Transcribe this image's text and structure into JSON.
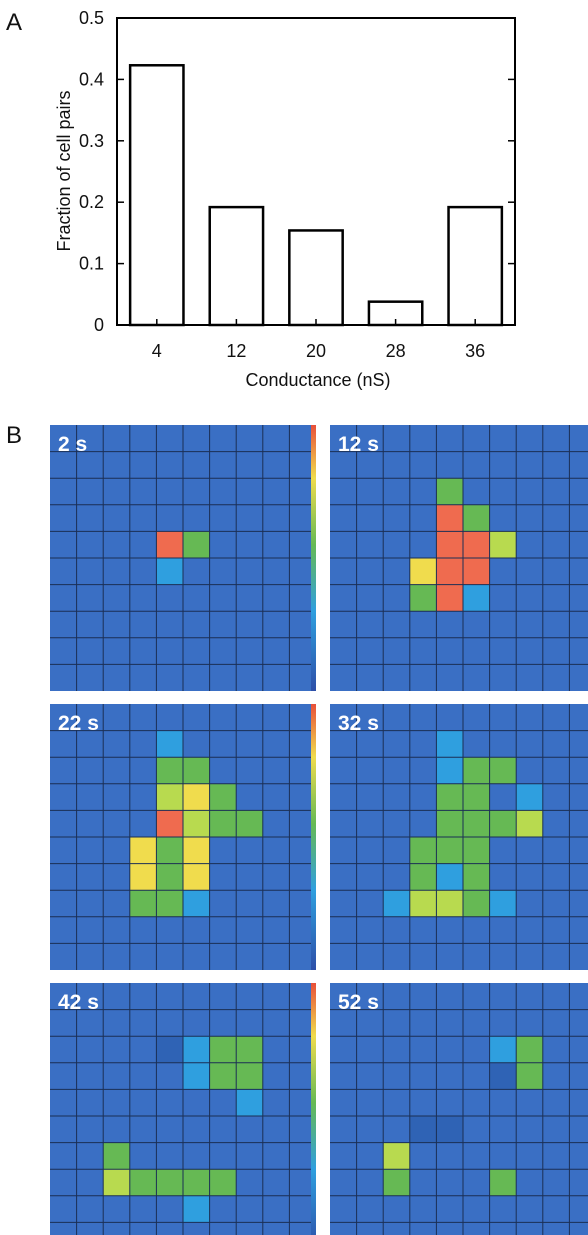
{
  "panels": {
    "a_letter": "A",
    "b_letter": "B"
  },
  "chart_data": {
    "type": "bar",
    "categories": [
      "4",
      "12",
      "20",
      "28",
      "36"
    ],
    "values": [
      0.423,
      0.192,
      0.154,
      0.038,
      0.192
    ],
    "xlabel": "Conductance (nS)",
    "ylabel": "Fraction of cell pairs",
    "ylim": [
      0,
      0.5
    ],
    "yticks": [
      "0",
      "0.1",
      "0.2",
      "0.3",
      "0.4",
      "0.5"
    ],
    "grid": false,
    "bar_fill": "#ffffff",
    "bar_stroke": "#000000"
  },
  "heatmaps": {
    "background_color": "#3a6fc4",
    "grid_line_color": "#1b2f55",
    "colors": {
      "r": "#ef6b4f",
      "y": "#f0dc4d",
      "lg": "#b8da4f",
      "g": "#66b954",
      "c": "#2f9fdf",
      "d": "#2f63b5"
    },
    "frames": [
      {
        "label": "2 s",
        "cells": [
          [
            "-",
            "-",
            "-",
            "-",
            "-",
            "-",
            "-",
            "-",
            "-",
            "-"
          ],
          [
            "-",
            "-",
            "-",
            "-",
            "-",
            "-",
            "-",
            "-",
            "-",
            "-"
          ],
          [
            "-",
            "-",
            "-",
            "-",
            "-",
            "-",
            "-",
            "-",
            "-",
            "-"
          ],
          [
            "-",
            "-",
            "-",
            "-",
            "-",
            "-",
            "-",
            "-",
            "-",
            "-"
          ],
          [
            "-",
            "-",
            "-",
            "-",
            "r",
            "g",
            "-",
            "-",
            "-",
            "-"
          ],
          [
            "-",
            "-",
            "-",
            "-",
            "c",
            "-",
            "-",
            "-",
            "-",
            "-"
          ],
          [
            "-",
            "-",
            "-",
            "-",
            "-",
            "-",
            "-",
            "-",
            "-",
            "-"
          ],
          [
            "-",
            "-",
            "-",
            "-",
            "-",
            "-",
            "-",
            "-",
            "-",
            "-"
          ],
          [
            "-",
            "-",
            "-",
            "-",
            "-",
            "-",
            "-",
            "-",
            "-",
            "-"
          ],
          [
            "-",
            "-",
            "-",
            "-",
            "-",
            "-",
            "-",
            "-",
            "-",
            "-"
          ]
        ]
      },
      {
        "label": "12 s",
        "cells": [
          [
            "-",
            "-",
            "-",
            "-",
            "-",
            "-",
            "-",
            "-",
            "-",
            "-"
          ],
          [
            "-",
            "-",
            "-",
            "-",
            "-",
            "-",
            "-",
            "-",
            "-",
            "-"
          ],
          [
            "-",
            "-",
            "-",
            "-",
            "g",
            "-",
            "-",
            "-",
            "-",
            "-"
          ],
          [
            "-",
            "-",
            "-",
            "-",
            "r",
            "g",
            "-",
            "-",
            "-",
            "-"
          ],
          [
            "-",
            "-",
            "-",
            "-",
            "r",
            "r",
            "lg",
            "-",
            "-",
            "-"
          ],
          [
            "-",
            "-",
            "-",
            "y",
            "r",
            "r",
            "-",
            "-",
            "-",
            "-"
          ],
          [
            "-",
            "-",
            "-",
            "g",
            "r",
            "c",
            "-",
            "-",
            "-",
            "-"
          ],
          [
            "-",
            "-",
            "-",
            "-",
            "-",
            "-",
            "-",
            "-",
            "-",
            "-"
          ],
          [
            "-",
            "-",
            "-",
            "-",
            "-",
            "-",
            "-",
            "-",
            "-",
            "-"
          ],
          [
            "-",
            "-",
            "-",
            "-",
            "-",
            "-",
            "-",
            "-",
            "-",
            "-"
          ]
        ]
      },
      {
        "label": "22 s",
        "cells": [
          [
            "-",
            "-",
            "-",
            "-",
            "-",
            "-",
            "-",
            "-",
            "-",
            "-"
          ],
          [
            "-",
            "-",
            "-",
            "-",
            "c",
            "-",
            "-",
            "-",
            "-",
            "-"
          ],
          [
            "-",
            "-",
            "-",
            "-",
            "g",
            "g",
            "-",
            "-",
            "-",
            "-"
          ],
          [
            "-",
            "-",
            "-",
            "-",
            "lg",
            "y",
            "g",
            "-",
            "-",
            "-"
          ],
          [
            "-",
            "-",
            "-",
            "-",
            "r",
            "lg",
            "g",
            "g",
            "-",
            "-"
          ],
          [
            "-",
            "-",
            "-",
            "y",
            "g",
            "y",
            "-",
            "-",
            "-",
            "-"
          ],
          [
            "-",
            "-",
            "-",
            "y",
            "g",
            "y",
            "-",
            "-",
            "-",
            "-"
          ],
          [
            "-",
            "-",
            "-",
            "g",
            "g",
            "c",
            "-",
            "-",
            "-",
            "-"
          ],
          [
            "-",
            "-",
            "-",
            "-",
            "-",
            "-",
            "-",
            "-",
            "-",
            "-"
          ],
          [
            "-",
            "-",
            "-",
            "-",
            "-",
            "-",
            "-",
            "-",
            "-",
            "-"
          ]
        ]
      },
      {
        "label": "32 s",
        "cells": [
          [
            "-",
            "-",
            "-",
            "-",
            "-",
            "-",
            "-",
            "-",
            "-",
            "-"
          ],
          [
            "-",
            "-",
            "-",
            "-",
            "c",
            "-",
            "-",
            "-",
            "-",
            "-"
          ],
          [
            "-",
            "-",
            "-",
            "-",
            "c",
            "g",
            "g",
            "-",
            "-",
            "-"
          ],
          [
            "-",
            "-",
            "-",
            "-",
            "g",
            "g",
            "-",
            "c",
            "-",
            "-"
          ],
          [
            "-",
            "-",
            "-",
            "-",
            "g",
            "g",
            "g",
            "lg",
            "-",
            "-"
          ],
          [
            "-",
            "-",
            "-",
            "g",
            "g",
            "g",
            "-",
            "-",
            "-",
            "-"
          ],
          [
            "-",
            "-",
            "-",
            "g",
            "c",
            "g",
            "-",
            "-",
            "-",
            "-"
          ],
          [
            "-",
            "-",
            "c",
            "lg",
            "lg",
            "g",
            "c",
            "-",
            "-",
            "-"
          ],
          [
            "-",
            "-",
            "-",
            "-",
            "-",
            "-",
            "-",
            "-",
            "-",
            "-"
          ],
          [
            "-",
            "-",
            "-",
            "-",
            "-",
            "-",
            "-",
            "-",
            "-",
            "-"
          ]
        ]
      },
      {
        "label": "42 s",
        "cells": [
          [
            "-",
            "-",
            "-",
            "-",
            "-",
            "-",
            "-",
            "-",
            "-",
            "-"
          ],
          [
            "-",
            "-",
            "-",
            "-",
            "-",
            "-",
            "-",
            "-",
            "-",
            "-"
          ],
          [
            "-",
            "-",
            "-",
            "-",
            "d",
            "c",
            "g",
            "g",
            "-",
            "-"
          ],
          [
            "-",
            "-",
            "-",
            "-",
            "-",
            "c",
            "g",
            "g",
            "-",
            "-"
          ],
          [
            "-",
            "-",
            "-",
            "-",
            "-",
            "-",
            "-",
            "c",
            "-",
            "-"
          ],
          [
            "-",
            "-",
            "-",
            "-",
            "-",
            "-",
            "-",
            "-",
            "-",
            "-"
          ],
          [
            "-",
            "-",
            "g",
            "-",
            "-",
            "-",
            "-",
            "-",
            "-",
            "-"
          ],
          [
            "-",
            "-",
            "lg",
            "g",
            "g",
            "g",
            "g",
            "-",
            "-",
            "-"
          ],
          [
            "-",
            "-",
            "-",
            "-",
            "-",
            "c",
            "-",
            "-",
            "-",
            "-"
          ],
          [
            "-",
            "-",
            "-",
            "-",
            "-",
            "-",
            "-",
            "-",
            "-",
            "-"
          ]
        ]
      },
      {
        "label": "52 s",
        "cells": [
          [
            "-",
            "-",
            "-",
            "-",
            "-",
            "-",
            "-",
            "-",
            "-",
            "-"
          ],
          [
            "-",
            "-",
            "-",
            "-",
            "-",
            "-",
            "-",
            "-",
            "-",
            "-"
          ],
          [
            "-",
            "-",
            "-",
            "-",
            "-",
            "-",
            "c",
            "g",
            "-",
            "-"
          ],
          [
            "-",
            "-",
            "-",
            "-",
            "-",
            "-",
            "d",
            "g",
            "-",
            "-"
          ],
          [
            "-",
            "-",
            "-",
            "-",
            "-",
            "-",
            "-",
            "-",
            "-",
            "-"
          ],
          [
            "-",
            "-",
            "-",
            "d",
            "d",
            "-",
            "-",
            "-",
            "-",
            "-"
          ],
          [
            "-",
            "-",
            "lg",
            "-",
            "-",
            "-",
            "-",
            "-",
            "-",
            "-"
          ],
          [
            "-",
            "-",
            "g",
            "-",
            "-",
            "-",
            "g",
            "-",
            "-",
            "-"
          ],
          [
            "-",
            "-",
            "-",
            "-",
            "-",
            "-",
            "-",
            "-",
            "-",
            "-"
          ],
          [
            "-",
            "-",
            "-",
            "-",
            "-",
            "-",
            "-",
            "-",
            "-",
            "-"
          ]
        ]
      }
    ]
  }
}
